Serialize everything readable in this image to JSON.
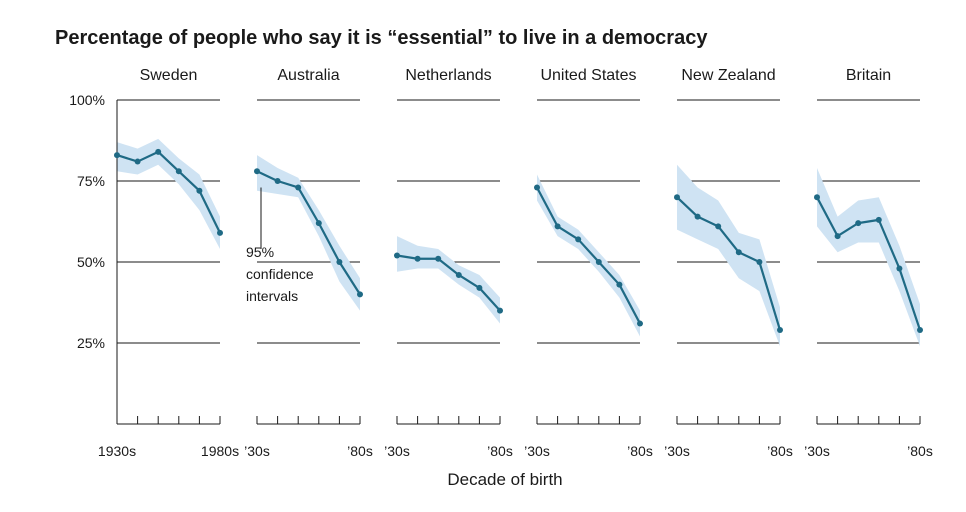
{
  "chart_data": {
    "type": "line",
    "title": "Percentage of people who say it is “essential” to live in a democracy",
    "xlabel": "Decade of birth",
    "ylabel": "",
    "ylim": [
      0,
      100
    ],
    "yticks": [
      {
        "value": 100,
        "label": "100%"
      },
      {
        "value": 75,
        "label": "75%"
      },
      {
        "value": 50,
        "label": "50%"
      },
      {
        "value": 25,
        "label": "25%"
      }
    ],
    "decades": [
      1930,
      1940,
      1950,
      1960,
      1970,
      1980
    ],
    "annotation": {
      "lines": [
        "95%",
        "confidence",
        "intervals"
      ]
    },
    "colors": {
      "line": "#1f6a85",
      "band": "#cfe3f3",
      "grid": "#1a1a1a"
    },
    "panels": [
      {
        "name": "Sweden",
        "x_start_label": "1930s",
        "x_end_label": "1980s",
        "values": [
          83,
          81,
          84,
          78,
          72,
          59
        ],
        "lower": [
          78,
          77,
          80,
          74,
          66,
          54
        ],
        "upper": [
          87,
          85,
          88,
          82,
          77,
          64
        ]
      },
      {
        "name": "Australia",
        "x_start_label": "’30s",
        "x_end_label": "’80s",
        "values": [
          78,
          75,
          73,
          62,
          50,
          40
        ],
        "lower": [
          72,
          71,
          70,
          58,
          44,
          35
        ],
        "upper": [
          83,
          79,
          76,
          66,
          55,
          45
        ]
      },
      {
        "name": "Netherlands",
        "x_start_label": "’30s",
        "x_end_label": "’80s",
        "values": [
          52,
          51,
          51,
          46,
          42,
          35
        ],
        "lower": [
          47,
          48,
          48,
          43,
          39,
          31
        ],
        "upper": [
          58,
          55,
          54,
          49,
          46,
          39
        ]
      },
      {
        "name": "United States",
        "x_start_label": "’30s",
        "x_end_label": "’80s",
        "values": [
          73,
          61,
          57,
          50,
          43,
          31
        ],
        "lower": [
          69,
          58,
          54,
          47,
          39,
          27
        ],
        "upper": [
          77,
          64,
          60,
          53,
          46,
          35
        ]
      },
      {
        "name": "New Zealand",
        "x_start_label": "’30s",
        "x_end_label": "’80s",
        "values": [
          70,
          64,
          61,
          53,
          50,
          29
        ],
        "lower": [
          60,
          57,
          54,
          45,
          41,
          24
        ],
        "upper": [
          80,
          73,
          69,
          59,
          57,
          36
        ]
      },
      {
        "name": "Britain",
        "x_start_label": "’30s",
        "x_end_label": "’80s",
        "values": [
          70,
          58,
          62,
          63,
          48,
          29
        ],
        "lower": [
          61,
          53,
          56,
          56,
          41,
          24
        ],
        "upper": [
          79,
          64,
          69,
          70,
          55,
          37
        ]
      }
    ]
  }
}
